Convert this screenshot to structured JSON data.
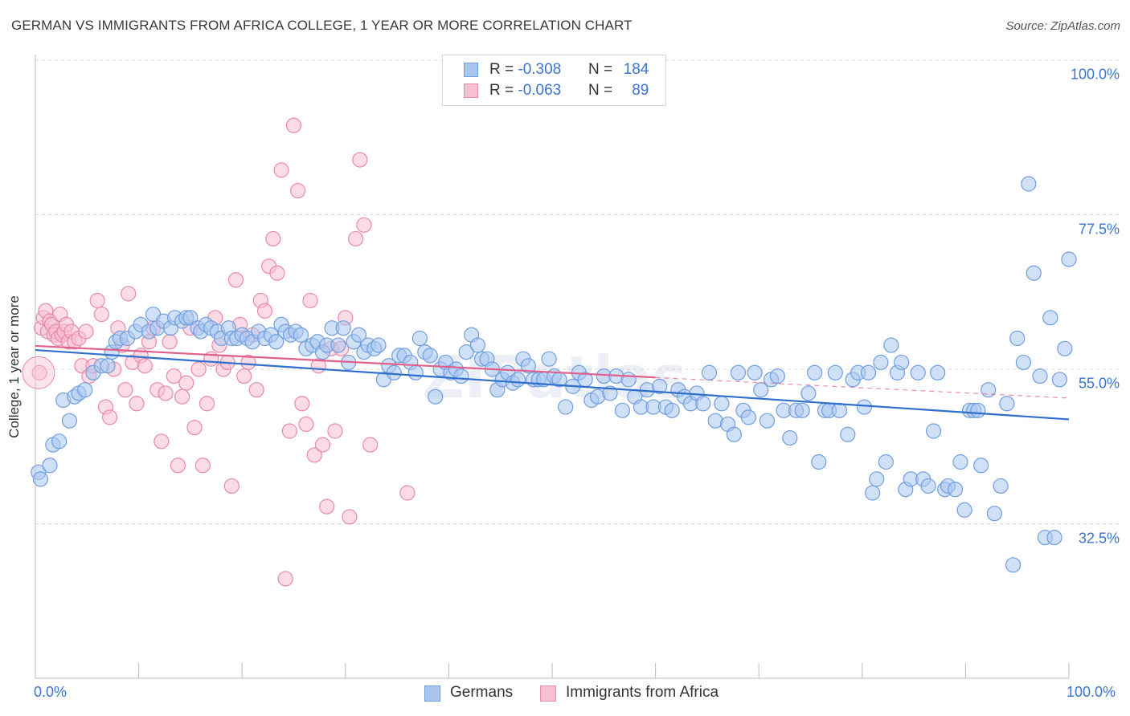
{
  "header": {
    "title": "GERMAN VS IMMIGRANTS FROM AFRICA COLLEGE, 1 YEAR OR MORE CORRELATION CHART",
    "source": "Source: ZipAtlas.com"
  },
  "legend_top": {
    "rows": [
      {
        "r_label": "R = ",
        "r_value": "-0.308",
        "n_label": "N = ",
        "n_value": "184"
      },
      {
        "r_label": "R = ",
        "r_value": "-0.063",
        "n_label": "N = ",
        "n_value": "89"
      }
    ]
  },
  "legend_bottom": {
    "germans": "Germans",
    "africa": "Immigrants from Africa"
  },
  "colors": {
    "blue_fill": "#a9c6f0",
    "blue_stroke": "#6f9ee0",
    "blue_line": "#2f6fce",
    "pink_fill": "#f7c0d0",
    "pink_stroke": "#e88aa8",
    "pink_line": "#e0608a",
    "tick_text": "#3b74cf",
    "grid": "#d9d9d9"
  },
  "chart_data": {
    "type": "scatter",
    "title": "GERMAN VS IMMIGRANTS FROM AFRICA COLLEGE, 1 YEAR OR MORE CORRELATION CHART",
    "xlabel": "",
    "ylabel": "College, 1 year or more",
    "xlim": [
      0,
      100
    ],
    "ylim": [
      10,
      100
    ],
    "x_ticks": [
      "0.0%",
      "100.0%"
    ],
    "y_ticks": [
      "100.0%",
      "77.5%",
      "55.0%",
      "32.5%"
    ],
    "y_tick_values": [
      100,
      77.5,
      55,
      32.5
    ],
    "grid": "horizontal dashed",
    "legend": "top-center",
    "watermark": "ZIPatlas",
    "series": [
      {
        "name": "Germans",
        "r": -0.308,
        "n": 184,
        "trend": {
          "x": [
            0,
            100
          ],
          "y": [
            57.8,
            47.7
          ],
          "style": "solid"
        },
        "points": [
          [
            0.3,
            40.0
          ],
          [
            0.5,
            39.0
          ],
          [
            1.4,
            41.0
          ],
          [
            1.7,
            44.0
          ],
          [
            2.3,
            44.5
          ],
          [
            2.7,
            50.5
          ],
          [
            3.3,
            47.5
          ],
          [
            3.8,
            51.0
          ],
          [
            4.2,
            51.5
          ],
          [
            4.8,
            52.0
          ],
          [
            5.6,
            54.5
          ],
          [
            6.4,
            55.5
          ],
          [
            7.0,
            55.5
          ],
          [
            7.4,
            57.5
          ],
          [
            7.8,
            59.0
          ],
          [
            8.2,
            59.5
          ],
          [
            8.9,
            59.5
          ],
          [
            9.7,
            60.5
          ],
          [
            10.2,
            61.5
          ],
          [
            11.0,
            60.5
          ],
          [
            11.4,
            63.0
          ],
          [
            11.8,
            61.0
          ],
          [
            12.4,
            62.0
          ],
          [
            13.1,
            61.0
          ],
          [
            13.5,
            62.5
          ],
          [
            14.2,
            62.0
          ],
          [
            14.6,
            62.5
          ],
          [
            15.0,
            62.5
          ],
          [
            15.7,
            61.0
          ],
          [
            16.0,
            60.5
          ],
          [
            16.5,
            61.5
          ],
          [
            17.0,
            61.0
          ],
          [
            17.6,
            60.5
          ],
          [
            18.0,
            59.5
          ],
          [
            18.7,
            61.0
          ],
          [
            19.0,
            59.5
          ],
          [
            19.5,
            59.5
          ],
          [
            20.0,
            60.0
          ],
          [
            20.5,
            59.5
          ],
          [
            21.0,
            59.0
          ],
          [
            21.6,
            60.5
          ],
          [
            22.2,
            59.5
          ],
          [
            22.8,
            60.0
          ],
          [
            23.3,
            59.0
          ],
          [
            23.8,
            61.5
          ],
          [
            24.2,
            60.5
          ],
          [
            24.7,
            60.0
          ],
          [
            25.2,
            60.5
          ],
          [
            25.7,
            60.0
          ],
          [
            26.2,
            58.0
          ],
          [
            26.8,
            58.5
          ],
          [
            27.3,
            59.0
          ],
          [
            27.8,
            57.5
          ],
          [
            28.2,
            58.5
          ],
          [
            28.7,
            61.0
          ],
          [
            29.3,
            58.5
          ],
          [
            29.8,
            61.0
          ],
          [
            30.3,
            56.0
          ],
          [
            30.8,
            59.0
          ],
          [
            31.3,
            60.0
          ],
          [
            31.8,
            57.5
          ],
          [
            32.2,
            58.5
          ],
          [
            32.8,
            58.0
          ],
          [
            33.2,
            58.5
          ],
          [
            33.7,
            53.5
          ],
          [
            34.2,
            55.5
          ],
          [
            34.7,
            54.5
          ],
          [
            35.2,
            57.0
          ],
          [
            35.7,
            57.0
          ],
          [
            36.3,
            56.0
          ],
          [
            36.8,
            54.5
          ],
          [
            37.2,
            59.5
          ],
          [
            37.7,
            57.5
          ],
          [
            38.2,
            57.0
          ],
          [
            38.7,
            51.0
          ],
          [
            39.2,
            55.0
          ],
          [
            39.7,
            56.0
          ],
          [
            40.2,
            54.5
          ],
          [
            40.7,
            55.0
          ],
          [
            41.2,
            54.0
          ],
          [
            41.7,
            57.5
          ],
          [
            42.2,
            60.0
          ],
          [
            42.8,
            58.5
          ],
          [
            43.2,
            56.5
          ],
          [
            43.7,
            56.5
          ],
          [
            44.2,
            55.0
          ],
          [
            44.7,
            52.0
          ],
          [
            45.2,
            53.5
          ],
          [
            45.7,
            54.5
          ],
          [
            46.2,
            53.0
          ],
          [
            46.7,
            53.5
          ],
          [
            47.2,
            56.5
          ],
          [
            47.7,
            55.5
          ],
          [
            48.2,
            53.5
          ],
          [
            48.7,
            53.5
          ],
          [
            49.2,
            53.5
          ],
          [
            49.7,
            56.5
          ],
          [
            50.2,
            54.0
          ],
          [
            50.7,
            53.5
          ],
          [
            51.3,
            49.5
          ],
          [
            52.0,
            52.5
          ],
          [
            52.6,
            54.5
          ],
          [
            53.2,
            53.5
          ],
          [
            53.8,
            50.5
          ],
          [
            54.4,
            51.0
          ],
          [
            55.0,
            54.0
          ],
          [
            55.6,
            51.5
          ],
          [
            56.2,
            54.0
          ],
          [
            56.8,
            49.0
          ],
          [
            57.4,
            53.5
          ],
          [
            58.0,
            51.0
          ],
          [
            58.6,
            49.5
          ],
          [
            59.2,
            52.0
          ],
          [
            59.8,
            49.5
          ],
          [
            60.4,
            52.5
          ],
          [
            61.0,
            49.5
          ],
          [
            61.6,
            49.0
          ],
          [
            62.2,
            52.0
          ],
          [
            62.8,
            51.0
          ],
          [
            63.4,
            50.0
          ],
          [
            64.0,
            51.5
          ],
          [
            64.6,
            50.0
          ],
          [
            65.2,
            54.5
          ],
          [
            65.8,
            47.5
          ],
          [
            66.4,
            50.0
          ],
          [
            67.0,
            47.0
          ],
          [
            67.6,
            45.5
          ],
          [
            68.0,
            54.5
          ],
          [
            68.5,
            49.0
          ],
          [
            69.0,
            48.0
          ],
          [
            69.6,
            54.5
          ],
          [
            70.2,
            52.0
          ],
          [
            70.8,
            47.5
          ],
          [
            71.2,
            53.5
          ],
          [
            71.8,
            54.0
          ],
          [
            72.4,
            49.0
          ],
          [
            73.0,
            45.0
          ],
          [
            73.6,
            49.0
          ],
          [
            74.2,
            49.0
          ],
          [
            74.8,
            51.5
          ],
          [
            75.4,
            54.5
          ],
          [
            75.8,
            41.5
          ],
          [
            76.4,
            49.0
          ],
          [
            76.8,
            49.0
          ],
          [
            77.4,
            54.5
          ],
          [
            77.8,
            49.0
          ],
          [
            78.6,
            45.5
          ],
          [
            79.1,
            53.5
          ],
          [
            79.6,
            54.5
          ],
          [
            80.2,
            49.5
          ],
          [
            80.6,
            54.5
          ],
          [
            81.0,
            37.0
          ],
          [
            81.4,
            39.0
          ],
          [
            81.8,
            56.0
          ],
          [
            82.3,
            41.5
          ],
          [
            82.8,
            58.5
          ],
          [
            83.4,
            54.5
          ],
          [
            83.8,
            56.0
          ],
          [
            84.2,
            37.5
          ],
          [
            84.7,
            39.0
          ],
          [
            85.4,
            54.5
          ],
          [
            85.9,
            39.0
          ],
          [
            86.4,
            38.0
          ],
          [
            86.9,
            46.0
          ],
          [
            87.3,
            54.5
          ],
          [
            88.0,
            37.5
          ],
          [
            88.3,
            38.0
          ],
          [
            89.0,
            37.5
          ],
          [
            89.5,
            41.5
          ],
          [
            89.9,
            34.5
          ],
          [
            90.4,
            49.0
          ],
          [
            90.8,
            49.0
          ],
          [
            91.2,
            49.0
          ],
          [
            91.5,
            41.0
          ],
          [
            92.2,
            52.0
          ],
          [
            92.8,
            34.0
          ],
          [
            93.4,
            38.0
          ],
          [
            94.0,
            50.0
          ],
          [
            94.6,
            26.5
          ],
          [
            95.0,
            59.5
          ],
          [
            95.6,
            56.0
          ],
          [
            96.1,
            82.0
          ],
          [
            96.6,
            69.0
          ],
          [
            97.2,
            54.0
          ],
          [
            97.7,
            30.5
          ],
          [
            98.2,
            62.5
          ],
          [
            98.6,
            30.5
          ],
          [
            99.1,
            53.5
          ],
          [
            99.6,
            58.0
          ],
          [
            100.0,
            71.0
          ]
        ]
      },
      {
        "name": "Immigrants from Africa",
        "r": -0.063,
        "n": 89,
        "trend": {
          "x": [
            0,
            60
          ],
          "y": [
            58.4,
            53.8
          ],
          "style": "solid",
          "extension": {
            "x": [
              60,
              100
            ],
            "y": [
              53.8,
              50.8
            ],
            "style": "dashed"
          }
        },
        "points": [
          [
            0.4,
            54.5
          ],
          [
            0.6,
            61.0
          ],
          [
            0.8,
            62.5
          ],
          [
            1.0,
            63.5
          ],
          [
            1.2,
            60.5
          ],
          [
            1.4,
            62.0
          ],
          [
            1.6,
            61.5
          ],
          [
            1.8,
            60.0
          ],
          [
            2.0,
            60.5
          ],
          [
            2.2,
            59.5
          ],
          [
            2.4,
            63.0
          ],
          [
            2.6,
            60.0
          ],
          [
            2.8,
            60.5
          ],
          [
            3.0,
            61.5
          ],
          [
            3.2,
            59.0
          ],
          [
            3.5,
            60.5
          ],
          [
            3.8,
            59.0
          ],
          [
            4.2,
            59.5
          ],
          [
            4.5,
            55.5
          ],
          [
            4.9,
            60.5
          ],
          [
            5.2,
            54.0
          ],
          [
            5.6,
            55.5
          ],
          [
            6.0,
            65.0
          ],
          [
            6.4,
            63.0
          ],
          [
            6.8,
            49.5
          ],
          [
            7.2,
            48.0
          ],
          [
            7.6,
            55.0
          ],
          [
            8.0,
            61.0
          ],
          [
            8.4,
            58.5
          ],
          [
            8.7,
            52.0
          ],
          [
            9.0,
            66.0
          ],
          [
            9.4,
            56.0
          ],
          [
            9.8,
            50.0
          ],
          [
            10.2,
            57.0
          ],
          [
            10.6,
            55.5
          ],
          [
            11.0,
            59.0
          ],
          [
            11.4,
            61.0
          ],
          [
            11.8,
            52.0
          ],
          [
            12.2,
            44.5
          ],
          [
            12.6,
            51.5
          ],
          [
            13.0,
            59.0
          ],
          [
            13.4,
            54.0
          ],
          [
            13.8,
            41.0
          ],
          [
            14.2,
            51.0
          ],
          [
            14.6,
            53.0
          ],
          [
            15.0,
            61.0
          ],
          [
            15.4,
            46.5
          ],
          [
            15.8,
            55.0
          ],
          [
            16.2,
            41.0
          ],
          [
            16.6,
            50.0
          ],
          [
            17.0,
            56.5
          ],
          [
            17.4,
            62.5
          ],
          [
            17.8,
            58.5
          ],
          [
            18.2,
            55.0
          ],
          [
            18.6,
            56.0
          ],
          [
            19.0,
            38.0
          ],
          [
            19.4,
            68.0
          ],
          [
            19.8,
            61.5
          ],
          [
            20.2,
            54.0
          ],
          [
            20.6,
            56.0
          ],
          [
            21.0,
            60.0
          ],
          [
            21.4,
            52.0
          ],
          [
            21.8,
            65.0
          ],
          [
            22.2,
            63.5
          ],
          [
            22.6,
            70.0
          ],
          [
            23.0,
            74.0
          ],
          [
            23.4,
            69.0
          ],
          [
            23.8,
            84.0
          ],
          [
            24.2,
            24.5
          ],
          [
            24.6,
            46.0
          ],
          [
            25.0,
            90.5
          ],
          [
            25.4,
            81.0
          ],
          [
            25.8,
            50.0
          ],
          [
            26.2,
            47.0
          ],
          [
            26.6,
            65.0
          ],
          [
            27.0,
            42.5
          ],
          [
            27.4,
            55.5
          ],
          [
            27.8,
            44.0
          ],
          [
            28.2,
            35.0
          ],
          [
            28.6,
            58.0
          ],
          [
            29.0,
            46.0
          ],
          [
            29.6,
            58.0
          ],
          [
            30.0,
            62.5
          ],
          [
            30.4,
            33.5
          ],
          [
            31.0,
            74.0
          ],
          [
            31.4,
            85.5
          ],
          [
            31.8,
            76.0
          ],
          [
            32.4,
            44.0
          ],
          [
            36.0,
            37.0
          ]
        ]
      }
    ]
  }
}
